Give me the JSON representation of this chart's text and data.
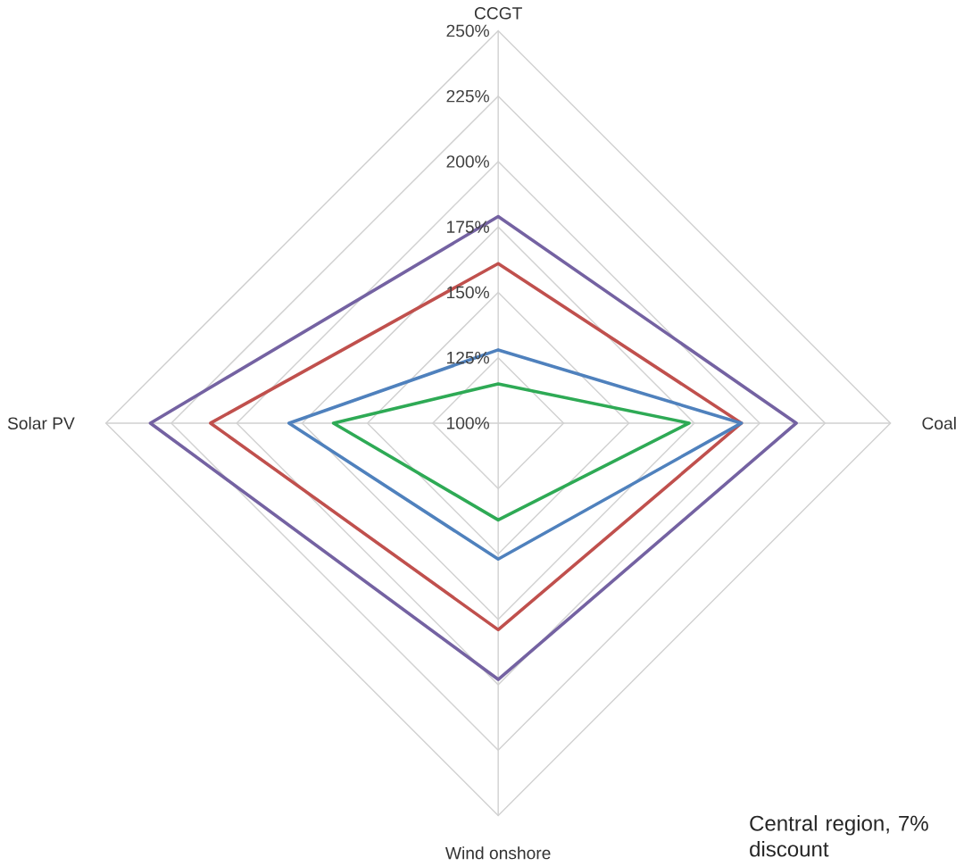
{
  "chart_data": {
    "type": "radar",
    "categories": [
      "CCGT",
      "Coal",
      "Wind onshore",
      "Solar PV"
    ],
    "series": [
      {
        "color": "#7462a2",
        "values": [
          179,
          214,
          198,
          233
        ]
      },
      {
        "color": "#c0504d",
        "values": [
          161,
          193,
          179,
          210
        ]
      },
      {
        "color": "#4f81bd",
        "values": [
          128,
          193,
          152,
          180
        ]
      },
      {
        "color": "#2eaa55",
        "values": [
          115,
          173,
          137,
          163
        ]
      }
    ],
    "ylim": [
      100,
      250
    ],
    "yticks": [
      {
        "value": 100,
        "label": "100%"
      },
      {
        "value": 125,
        "label": "125%"
      },
      {
        "value": 150,
        "label": "150%"
      },
      {
        "value": 175,
        "label": "175%"
      },
      {
        "value": 200,
        "label": "200%"
      },
      {
        "value": 225,
        "label": "225%"
      },
      {
        "value": 250,
        "label": "250%"
      }
    ],
    "grid": true,
    "annotations": [
      "Central region, 7% discount"
    ]
  }
}
